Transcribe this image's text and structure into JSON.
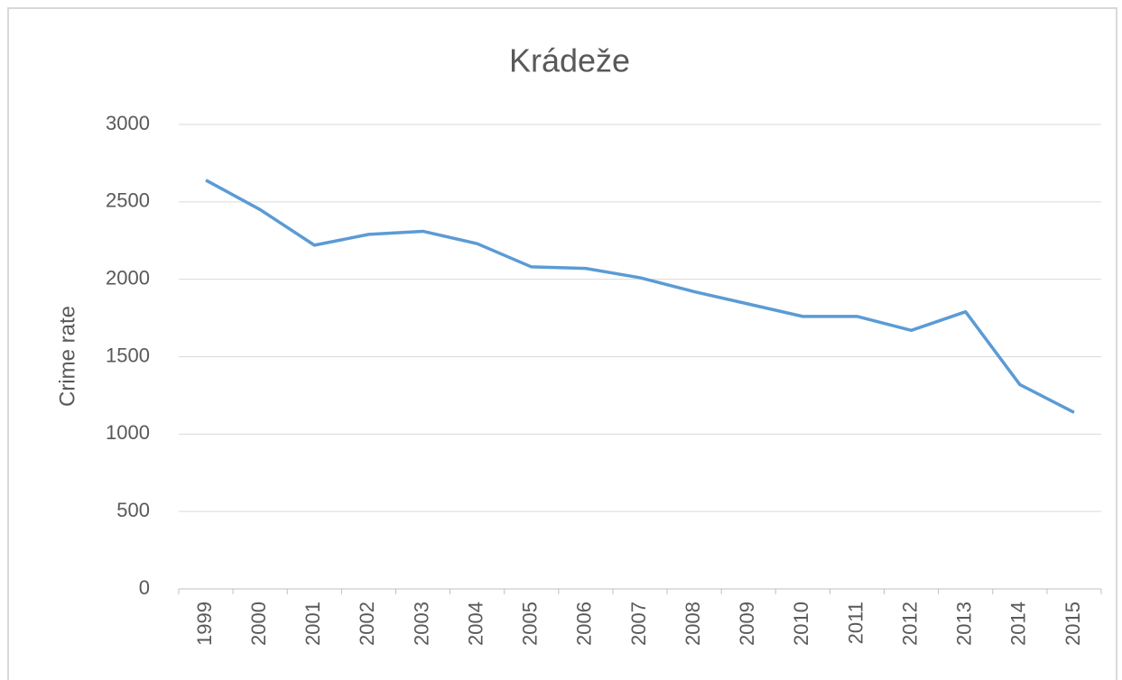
{
  "chart_data": {
    "type": "line",
    "title": "Krádeže",
    "y_label": "Crime rate",
    "categories": [
      "1999",
      "2000",
      "2001",
      "2002",
      "2003",
      "2004",
      "2005",
      "2006",
      "2007",
      "2008",
      "2009",
      "2010",
      "2011",
      "2012",
      "2013",
      "2014",
      "2015"
    ],
    "series": [
      {
        "name": "Krádeže",
        "color": "#5b9bd5",
        "values": [
          2640,
          2450,
          2220,
          2290,
          2310,
          2230,
          2080,
          2070,
          2010,
          1920,
          1840,
          1760,
          1760,
          1670,
          1790,
          1320,
          1140
        ]
      }
    ],
    "ylim": [
      0,
      3000
    ],
    "yticks": [
      0,
      500,
      1000,
      1500,
      2000,
      2500,
      3000
    ],
    "grid": true
  }
}
